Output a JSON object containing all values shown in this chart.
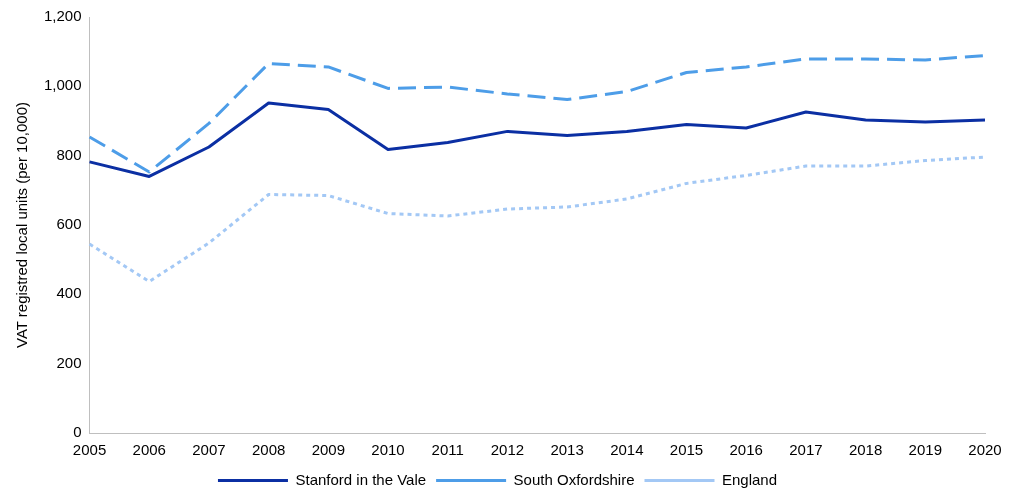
{
  "chart_data": {
    "type": "line",
    "ylabel": "VAT registred local units (per 10,000)",
    "categories": [
      "2005",
      "2006",
      "2007",
      "2008",
      "2009",
      "2010",
      "2011",
      "2012",
      "2013",
      "2014",
      "2015",
      "2016",
      "2017",
      "2018",
      "2019",
      "2020"
    ],
    "series": [
      {
        "name": "Stanford in the Vale",
        "color": "#0b2fa3",
        "line_style": "solid",
        "values": [
          782,
          740,
          825,
          952,
          933,
          818,
          838,
          870,
          858,
          870,
          890,
          880,
          926,
          903,
          897,
          903
        ]
      },
      {
        "name": "South Oxfordshire",
        "color": "#4d9de8",
        "line_style": "dashed",
        "values": [
          854,
          753,
          893,
          1066,
          1056,
          994,
          998,
          978,
          962,
          985,
          1040,
          1056,
          1079,
          1079,
          1076,
          1089
        ]
      },
      {
        "name": "England",
        "color": "#a3c8f5",
        "line_style": "dotted",
        "values": [
          545,
          437,
          548,
          688,
          685,
          633,
          626,
          646,
          652,
          675,
          720,
          743,
          770,
          770,
          786,
          796
        ]
      }
    ],
    "ylim": [
      0,
      1200
    ],
    "yticks": [
      0,
      200,
      400,
      600,
      800,
      {
        "value": 1000,
        "label": "1,000"
      },
      {
        "value": 1200,
        "label": "1,200"
      }
    ],
    "grid": false,
    "legend": "bottom",
    "marker": "none"
  }
}
